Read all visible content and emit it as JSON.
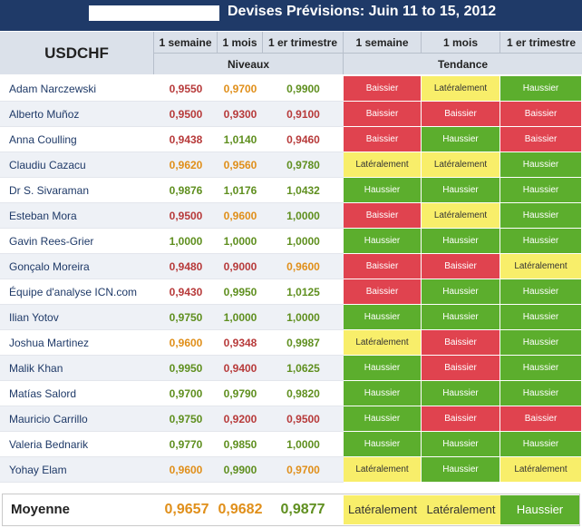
{
  "title": "Devises Prévisions: Juin 11 to 15, 2012",
  "pair": "USDCHF",
  "headers": {
    "week": "1 semaine",
    "month": "1 mois",
    "quarter": "1 er trimestre",
    "levels": "Niveaux",
    "trend": "Tendance"
  },
  "colors": {
    "title_bg": "#1f3a68",
    "header_bg": "#dbe1ea",
    "red_value": "#b73a3a",
    "orange_value": "#e08f1a",
    "green_value": "#5f8f1f",
    "baissier_cell": "#e0434f",
    "lateral_cell": "#f8ee6a",
    "haussier_cell": "#5cae2d",
    "name_text": "#1f3a68"
  },
  "rows": [
    {
      "name": "Adam Narczewski",
      "w": "0,9550",
      "m": "0,9700",
      "q": "0,9900",
      "wc": "red",
      "mc": "orange",
      "qc": "green",
      "tw": "Baissier",
      "tm": "Latéralement",
      "tq": "Haussier"
    },
    {
      "name": "Alberto Muñoz",
      "w": "0,9500",
      "m": "0,9300",
      "q": "0,9100",
      "wc": "red",
      "mc": "red",
      "qc": "red",
      "tw": "Baissier",
      "tm": "Baissier",
      "tq": "Baissier"
    },
    {
      "name": "Anna Coulling",
      "w": "0,9438",
      "m": "1,0140",
      "q": "0,9460",
      "wc": "red",
      "mc": "green",
      "qc": "red",
      "tw": "Baissier",
      "tm": "Haussier",
      "tq": "Baissier"
    },
    {
      "name": "Claudiu Cazacu",
      "w": "0,9620",
      "m": "0,9560",
      "q": "0,9780",
      "wc": "orange",
      "mc": "orange",
      "qc": "green",
      "tw": "Latéralement",
      "tm": "Latéralement",
      "tq": "Haussier"
    },
    {
      "name": "Dr S. Sivaraman",
      "w": "0,9876",
      "m": "1,0176",
      "q": "1,0432",
      "wc": "green",
      "mc": "green",
      "qc": "green",
      "tw": "Haussier",
      "tm": "Haussier",
      "tq": "Haussier"
    },
    {
      "name": "Esteban Mora",
      "w": "0,9500",
      "m": "0,9600",
      "q": "1,0000",
      "wc": "red",
      "mc": "orange",
      "qc": "green",
      "tw": "Baissier",
      "tm": "Latéralement",
      "tq": "Haussier"
    },
    {
      "name": "Gavin Rees-Grier",
      "w": "1,0000",
      "m": "1,0000",
      "q": "1,0000",
      "wc": "green",
      "mc": "green",
      "qc": "green",
      "tw": "Haussier",
      "tm": "Haussier",
      "tq": "Haussier"
    },
    {
      "name": "Gonçalo Moreira",
      "w": "0,9480",
      "m": "0,9000",
      "q": "0,9600",
      "wc": "red",
      "mc": "red",
      "qc": "orange",
      "tw": "Baissier",
      "tm": "Baissier",
      "tq": "Latéralement"
    },
    {
      "name": "Équipe d'analyse ICN.com",
      "w": "0,9430",
      "m": "0,9950",
      "q": "1,0125",
      "wc": "red",
      "mc": "green",
      "qc": "green",
      "tw": "Baissier",
      "tm": "Haussier",
      "tq": "Haussier"
    },
    {
      "name": "Ilian Yotov",
      "w": "0,9750",
      "m": "1,0000",
      "q": "1,0000",
      "wc": "green",
      "mc": "green",
      "qc": "green",
      "tw": "Haussier",
      "tm": "Haussier",
      "tq": "Haussier"
    },
    {
      "name": "Joshua Martinez",
      "w": "0,9600",
      "m": "0,9348",
      "q": "0,9987",
      "wc": "orange",
      "mc": "red",
      "qc": "green",
      "tw": "Latéralement",
      "tm": "Baissier",
      "tq": "Haussier"
    },
    {
      "name": "Malik Khan",
      "w": "0,9950",
      "m": "0,9400",
      "q": "1,0625",
      "wc": "green",
      "mc": "red",
      "qc": "green",
      "tw": "Haussier",
      "tm": "Baissier",
      "tq": "Haussier"
    },
    {
      "name": "Matías Salord",
      "w": "0,9700",
      "m": "0,9790",
      "q": "0,9820",
      "wc": "green",
      "mc": "green",
      "qc": "green",
      "tw": "Haussier",
      "tm": "Haussier",
      "tq": "Haussier"
    },
    {
      "name": "Mauricio Carrillo",
      "w": "0,9750",
      "m": "0,9200",
      "q": "0,9500",
      "wc": "green",
      "mc": "red",
      "qc": "red",
      "tw": "Haussier",
      "tm": "Baissier",
      "tq": "Baissier"
    },
    {
      "name": "Valeria Bednarik",
      "w": "0,9770",
      "m": "0,9850",
      "q": "1,0000",
      "wc": "green",
      "mc": "green",
      "qc": "green",
      "tw": "Haussier",
      "tm": "Haussier",
      "tq": "Haussier"
    },
    {
      "name": "Yohay Elam",
      "w": "0,9600",
      "m": "0,9900",
      "q": "0,9700",
      "wc": "orange",
      "mc": "green",
      "qc": "orange",
      "tw": "Latéralement",
      "tm": "Haussier",
      "tq": "Latéralement"
    }
  ],
  "average": {
    "label": "Moyenne",
    "w": "0,9657",
    "m": "0,9682",
    "q": "0,9877",
    "wc": "orange",
    "mc": "orange",
    "qc": "green",
    "tw": "Latéralement",
    "tm": "Latéralement",
    "tq": "Haussier"
  }
}
